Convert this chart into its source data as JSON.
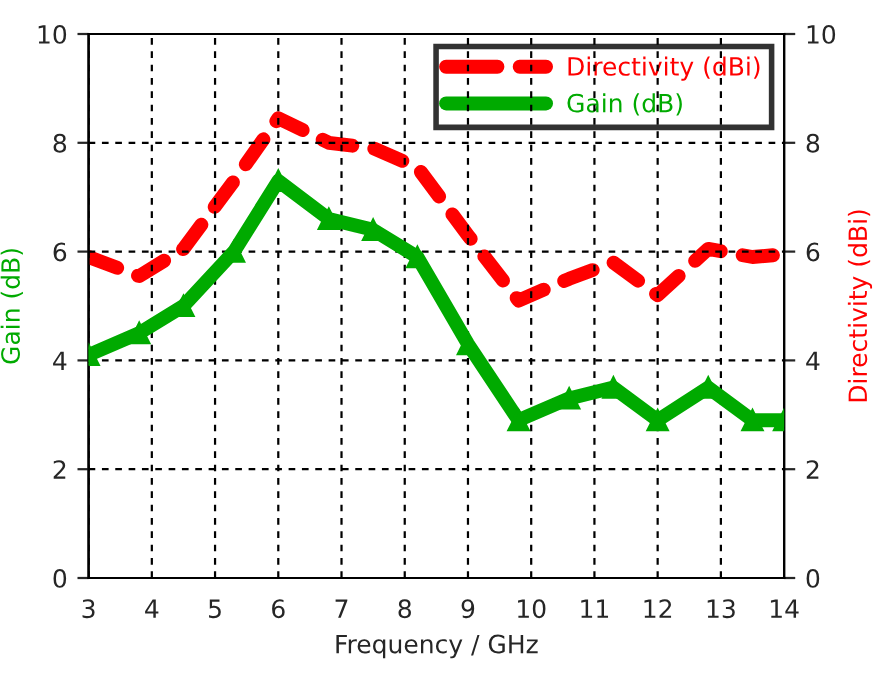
{
  "chart_data": {
    "type": "line",
    "xlabel": "Frequency / GHz",
    "ylabel": "Gain (dB)",
    "y2label": "Directivity (dBi)",
    "x": [
      3,
      3.8,
      4.5,
      5.3,
      6,
      6.8,
      7.5,
      8.2,
      9,
      9.8,
      10.6,
      11.3,
      12,
      12.8,
      13.5,
      14
    ],
    "series": [
      {
        "name": "Directivity (dBi)",
        "color": "#ff0000",
        "axis": "y2",
        "line_style": "dashed",
        "marker": "none",
        "values": [
          5.9,
          5.55,
          6.05,
          7.3,
          8.45,
          8.0,
          7.9,
          7.55,
          6.3,
          5.1,
          5.5,
          5.8,
          5.2,
          6.05,
          5.9,
          5.95
        ]
      },
      {
        "name": "Gain (dB)",
        "color": "#00aa00",
        "line_style": "solid",
        "marker": "triangle",
        "values": [
          4.1,
          4.5,
          5.0,
          6.0,
          7.3,
          6.6,
          6.4,
          5.9,
          4.3,
          2.9,
          3.3,
          3.5,
          2.9,
          3.5,
          2.9,
          2.9
        ]
      }
    ],
    "xlim": [
      3,
      14
    ],
    "xticks": [
      3,
      4,
      5,
      6,
      7,
      8,
      9,
      10,
      11,
      12,
      13,
      14
    ],
    "ylim": [
      0,
      10
    ],
    "yticks": [
      0,
      2,
      4,
      6,
      8,
      10
    ],
    "y2lim": [
      0,
      10
    ],
    "y2ticks": [
      0,
      2,
      4,
      6,
      8,
      10
    ],
    "grid": true,
    "legend": "top right"
  }
}
